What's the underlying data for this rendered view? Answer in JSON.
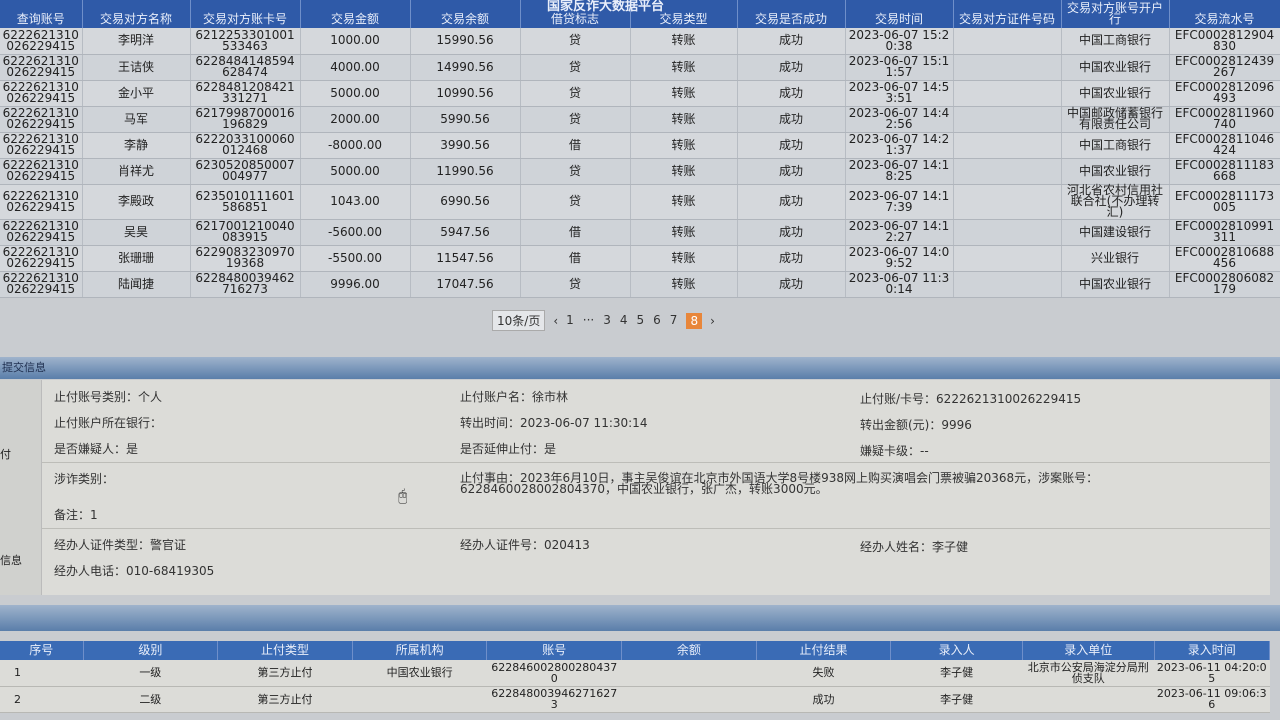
{
  "system_title": "国家反诈大数据平台",
  "transactions": {
    "columns": [
      "查询账号",
      "交易对方名称",
      "交易对方账卡号",
      "交易金额",
      "交易余额",
      "借贷标志",
      "交易类型",
      "交易是否成功",
      "交易时间",
      "交易对方证件号码",
      "交易对方账号开户行",
      "交易流水号"
    ],
    "rows": [
      [
        "6222621310026229415",
        "李明洋",
        "6212253301001533463",
        "1000.00",
        "15990.56",
        "贷",
        "转账",
        "成功",
        "2023-06-07 15:20:38",
        "",
        "中国工商银行",
        "EFC0002812904830"
      ],
      [
        "6222621310026229415",
        "王诘侠",
        "6228484148594628474",
        "4000.00",
        "14990.56",
        "贷",
        "转账",
        "成功",
        "2023-06-07 15:11:57",
        "",
        "中国农业银行",
        "EFC0002812439267"
      ],
      [
        "6222621310026229415",
        "金小平",
        "6228481208421331271",
        "5000.00",
        "10990.56",
        "贷",
        "转账",
        "成功",
        "2023-06-07 14:53:51",
        "",
        "中国农业银行",
        "EFC0002812096493"
      ],
      [
        "6222621310026229415",
        "马军",
        "6217998700016196829",
        "2000.00",
        "5990.56",
        "贷",
        "转账",
        "成功",
        "2023-06-07 14:42:56",
        "",
        "中国邮政储蓄银行有限责任公司",
        "EFC0002811960740"
      ],
      [
        "6222621310026229415",
        "李静",
        "6222033100060012468",
        "-8000.00",
        "3990.56",
        "借",
        "转账",
        "成功",
        "2023-06-07 14:21:37",
        "",
        "中国工商银行",
        "EFC0002811046424"
      ],
      [
        "6222621310026229415",
        "肖祥尤",
        "6230520850007004977",
        "5000.00",
        "11990.56",
        "贷",
        "转账",
        "成功",
        "2023-06-07 14:18:25",
        "",
        "中国农业银行",
        "EFC0002811183668"
      ],
      [
        "6222621310026229415",
        "李殿政",
        "6235010111601586851",
        "1043.00",
        "6990.56",
        "贷",
        "转账",
        "成功",
        "2023-06-07 14:17:39",
        "",
        "河北省农村信用社联合社(不办理转汇)",
        "EFC0002811173005"
      ],
      [
        "6222621310026229415",
        "吴昊",
        "6217001210040083915",
        "-5600.00",
        "5947.56",
        "借",
        "转账",
        "成功",
        "2023-06-07 14:12:27",
        "",
        "中国建设银行",
        "EFC0002810991311"
      ],
      [
        "6222621310026229415",
        "张珊珊",
        "622908323097019368",
        "-5500.00",
        "11547.56",
        "借",
        "转账",
        "成功",
        "2023-06-07 14:09:52",
        "",
        "兴业银行",
        "EFC0002810688456"
      ],
      [
        "6222621310026229415",
        "陆闻捷",
        "6228480039462716273",
        "9996.00",
        "17047.56",
        "贷",
        "转账",
        "成功",
        "2023-06-07 11:30:14",
        "",
        "中国农业银行",
        "EFC0002806082179"
      ]
    ]
  },
  "pagination": {
    "page_size": "10条/页",
    "prev": "‹",
    "next": "›",
    "pages": [
      "1",
      "···",
      "3",
      "4",
      "5",
      "6",
      "7",
      "8"
    ],
    "current": "8",
    "current_color": "#e8863a"
  },
  "submit_section": {
    "title": "提交信息",
    "side_labels": [
      "付",
      "信息"
    ],
    "fields": {
      "account_type": "止付账号类别：个人",
      "account_name": "止付账户名：徐市林",
      "account_no": "止付账/卡号：6222621310026229415",
      "bank": "止付账户所在银行：",
      "out_time": "转出时间：2023-06-07 11:30:14",
      "out_amount": "转出金额(元)：9996",
      "is_suspect": "是否嫌疑人：是",
      "extend": "是否延伸止付：是",
      "suspect_level": "嫌疑卡级：--",
      "fraud_type": "涉诈类别：",
      "reason": "止付事由：2023年6月10日，事主吴俊谊在北京市外国语大学8号楼938网上购买演唱会门票被骗20368元，涉案账号：6228460028002804370，中国农业银行，张广杰，转账3000元。",
      "remark": "备注：1",
      "officer_id_type": "经办人证件类型：警官证",
      "officer_id": "经办人证件号：020413",
      "officer_name": "经办人姓名：李子健",
      "officer_phone": "经办人电话：010-68419305"
    }
  },
  "stop_results": {
    "columns": [
      "序号",
      "级别",
      "止付类型",
      "所属机构",
      "账号",
      "余额",
      "止付结果",
      "录入人",
      "录入单位",
      "录入时间"
    ],
    "rows": [
      [
        "1",
        "一级",
        "第三方止付",
        "中国农业银行",
        "6228460028002804370",
        "",
        "失败",
        "李子健",
        "北京市公安局海淀分局刑侦支队",
        "2023-06-11 04:20:05"
      ],
      [
        "2",
        "二级",
        "第三方止付",
        "",
        "6228480039462716273",
        "",
        "成功",
        "李子健",
        "",
        "2023-06-11 09:06:36"
      ]
    ]
  }
}
